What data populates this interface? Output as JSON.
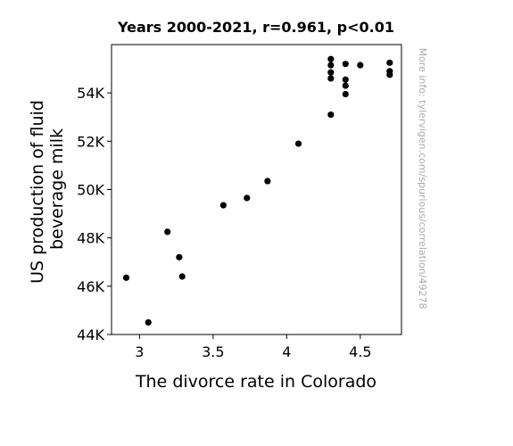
{
  "chart_data": {
    "type": "scatter",
    "title": "Years 2000-2021, r=0.961, p<0.01",
    "xlabel": "The divorce rate in Colorado",
    "ylabel": "US production of fluid beverage milk",
    "xlim": [
      2.81,
      4.78
    ],
    "ylim": [
      44000,
      56000
    ],
    "x_ticks": [
      3,
      3.5,
      4,
      4.5
    ],
    "x_tick_labels": [
      "3",
      "3.5",
      "4",
      "4.5"
    ],
    "y_ticks": [
      44000,
      46000,
      48000,
      50000,
      52000,
      54000
    ],
    "y_tick_labels": [
      "44K",
      "46K",
      "48K",
      "50K",
      "52K",
      "54K"
    ],
    "grid": false,
    "side_note": "More info: tylervigen.com/spurious/correlation/49278",
    "point_color": "#000000",
    "x": [
      2.91,
      3.06,
      3.19,
      3.27,
      3.29,
      3.57,
      3.73,
      3.87,
      4.08,
      4.3,
      4.3,
      4.3,
      4.3,
      4.3,
      4.4,
      4.4,
      4.4,
      4.4,
      4.5,
      4.7,
      4.7,
      4.7
    ],
    "y": [
      46350,
      44500,
      48250,
      47200,
      46400,
      49350,
      49650,
      50350,
      51900,
      53100,
      54600,
      54850,
      55150,
      55400,
      53950,
      54300,
      54550,
      55200,
      55150,
      54750,
      54900,
      55250
    ]
  }
}
